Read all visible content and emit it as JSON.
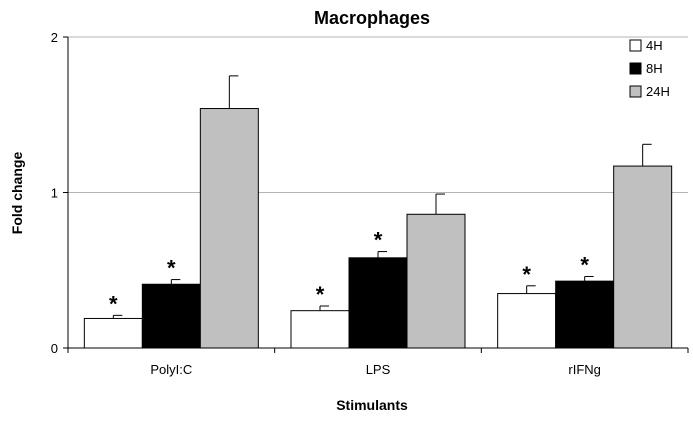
{
  "chart_data": {
    "type": "bar",
    "title": "Macrophages",
    "xlabel": "Stimulants",
    "ylabel": "Fold change",
    "categories": [
      "PolyI:C",
      "LPS",
      "rIFNg"
    ],
    "ylim": [
      0,
      2
    ],
    "yticks": [
      "0",
      "1",
      "2"
    ],
    "grid": true,
    "legend_position": "top-right",
    "series": [
      {
        "name": "4H",
        "color": "#ffffff",
        "values": [
          0.19,
          0.24,
          0.35
        ],
        "errors": [
          0.02,
          0.03,
          0.05
        ],
        "significant": [
          true,
          true,
          true
        ]
      },
      {
        "name": "8H",
        "color": "#000000",
        "values": [
          0.41,
          0.58,
          0.43
        ],
        "errors": [
          0.03,
          0.04,
          0.03
        ],
        "significant": [
          true,
          true,
          true
        ]
      },
      {
        "name": "24H",
        "color": "#c0c0c0",
        "values": [
          1.54,
          0.86,
          1.17
        ],
        "errors": [
          0.21,
          0.13,
          0.14
        ],
        "significant": [
          false,
          false,
          false
        ]
      }
    ],
    "significance_marker": "*"
  }
}
